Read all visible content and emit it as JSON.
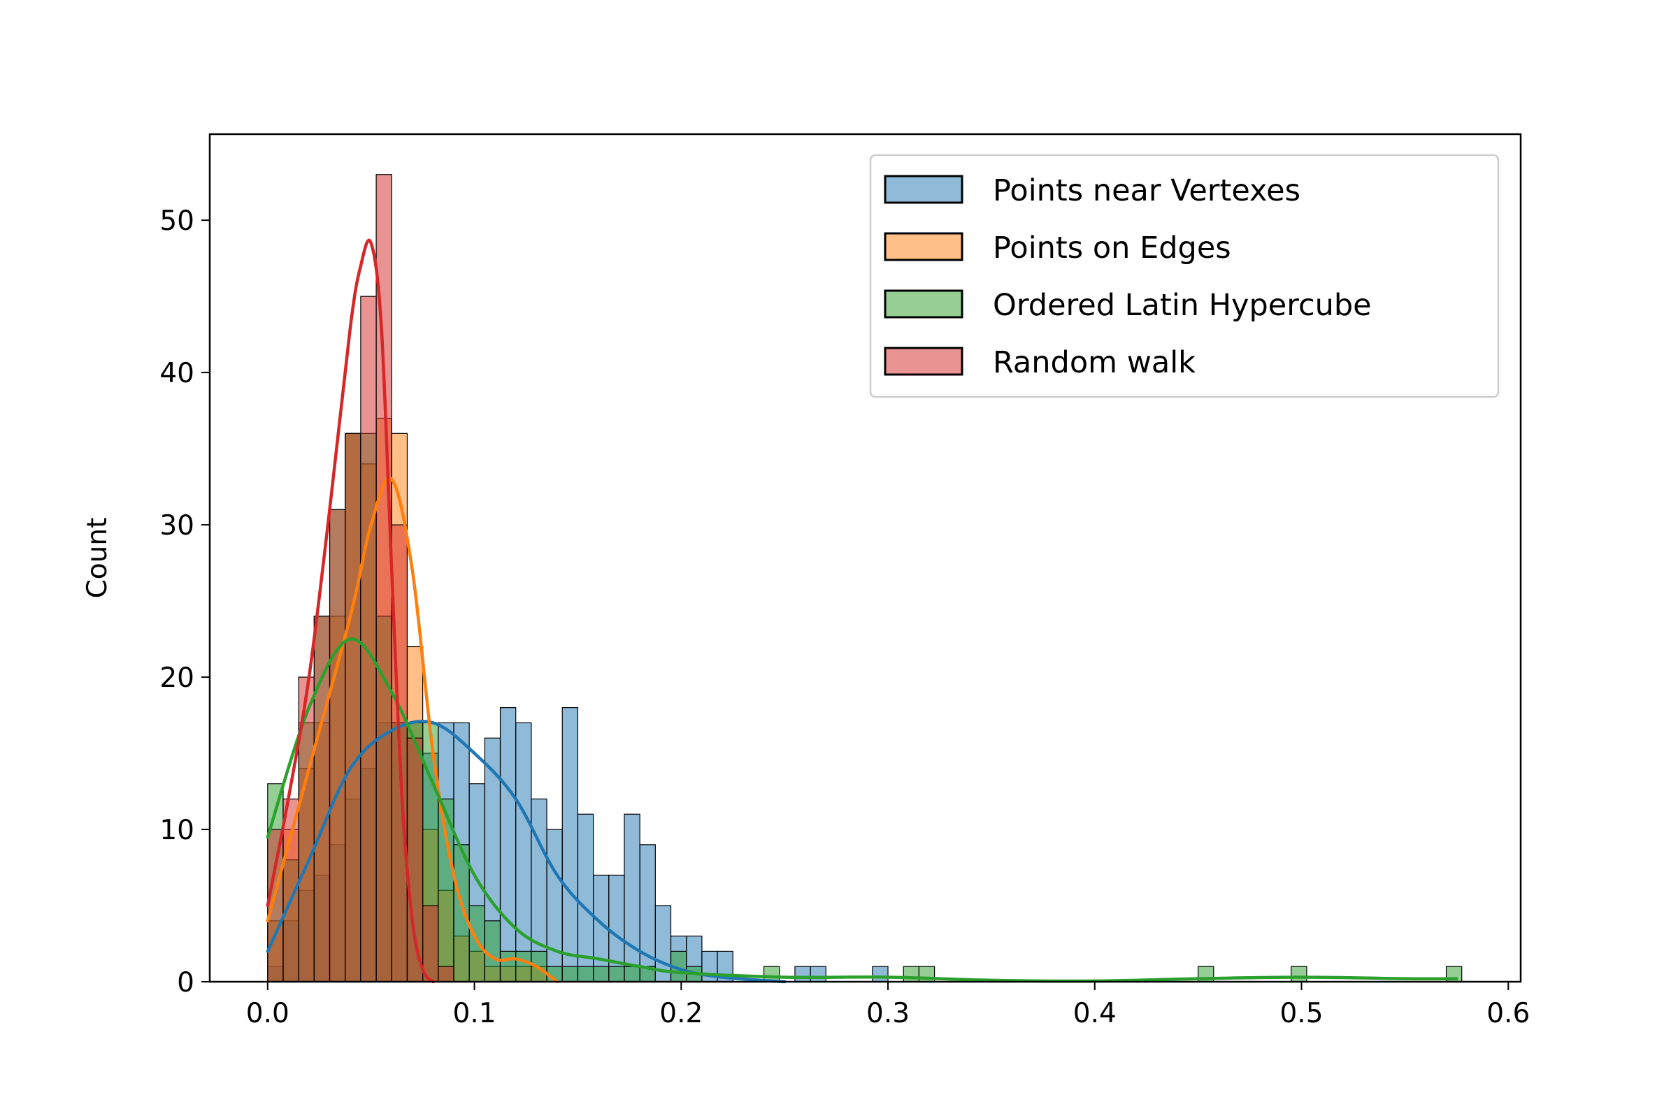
{
  "chart_data": {
    "type": "histogram",
    "xlabel": "",
    "ylabel": "Count",
    "xlim": [
      -0.028,
      0.606
    ],
    "ylim": [
      0,
      55.65
    ],
    "xticks": [
      0.0,
      0.1,
      0.2,
      0.3,
      0.4,
      0.5,
      0.6
    ],
    "xtick_labels": [
      "0.0",
      "0.1",
      "0.2",
      "0.3",
      "0.4",
      "0.5",
      "0.6"
    ],
    "yticks": [
      0,
      10,
      20,
      30,
      40,
      50
    ],
    "ytick_labels": [
      "0",
      "10",
      "20",
      "30",
      "40",
      "50"
    ],
    "grid": false,
    "legend_position": "top-right",
    "bin_start": 0.0,
    "bin_width": 0.0075,
    "series": [
      {
        "name": "Points near Vertexes",
        "color": "#1f77b4",
        "counts": [
          1,
          4,
          6,
          7,
          9,
          12,
          14,
          17,
          17,
          17,
          15,
          17,
          17,
          13,
          16,
          18,
          17,
          12,
          10,
          18,
          11,
          7,
          7,
          11,
          9,
          5,
          3,
          3,
          2,
          2,
          0,
          0,
          0,
          0,
          1,
          1,
          0,
          0,
          0,
          1,
          0
        ],
        "kde_x": [
          0.0,
          0.02,
          0.04,
          0.06,
          0.08,
          0.1,
          0.12,
          0.14,
          0.16,
          0.18,
          0.2,
          0.22,
          0.25
        ],
        "kde_y": [
          2,
          8,
          14,
          16.5,
          17,
          15,
          12,
          7,
          4,
          2,
          0.8,
          0.3,
          0
        ]
      },
      {
        "name": "Points on Edges",
        "color": "#ff7f0e",
        "counts": [
          4,
          10,
          14,
          17,
          24,
          36,
          34,
          37,
          36,
          22,
          10,
          6,
          3,
          2,
          1,
          1,
          1,
          1,
          0
        ],
        "kde_x": [
          0.0,
          0.02,
          0.04,
          0.05,
          0.06,
          0.07,
          0.08,
          0.09,
          0.1,
          0.11,
          0.12,
          0.13,
          0.14
        ],
        "kde_y": [
          4,
          14,
          24,
          30,
          33,
          27,
          15,
          7,
          3,
          1.5,
          1.5,
          1,
          0
        ]
      },
      {
        "name": "Ordered Latin Hypercube",
        "color": "#2ca02c",
        "sparse_bins": [
          [
            0.0,
            13
          ],
          [
            0.0075,
            8
          ],
          [
            0.015,
            17
          ],
          [
            0.0225,
            24
          ],
          [
            0.03,
            31
          ],
          [
            0.0375,
            36
          ],
          [
            0.045,
            36
          ],
          [
            0.0525,
            24
          ],
          [
            0.06,
            17
          ],
          [
            0.0675,
            17
          ],
          [
            0.075,
            17
          ],
          [
            0.0825,
            12
          ],
          [
            0.09,
            9
          ],
          [
            0.0975,
            5
          ],
          [
            0.105,
            4
          ],
          [
            0.1125,
            2
          ],
          [
            0.12,
            2
          ],
          [
            0.1275,
            2
          ],
          [
            0.135,
            1
          ],
          [
            0.1425,
            1
          ],
          [
            0.15,
            1
          ],
          [
            0.1575,
            1
          ],
          [
            0.165,
            1
          ],
          [
            0.1725,
            1
          ],
          [
            0.18,
            1
          ],
          [
            0.195,
            2
          ],
          [
            0.2025,
            1
          ],
          [
            0.24,
            1
          ],
          [
            0.3075,
            1
          ],
          [
            0.315,
            1
          ],
          [
            0.45,
            1
          ],
          [
            0.495,
            1
          ],
          [
            0.57,
            1
          ]
        ],
        "kde_x": [
          0.0,
          0.02,
          0.04,
          0.06,
          0.08,
          0.1,
          0.12,
          0.14,
          0.16,
          0.18,
          0.2,
          0.25,
          0.3,
          0.35,
          0.4,
          0.45,
          0.5,
          0.55,
          0.575
        ],
        "kde_y": [
          9.5,
          18,
          22.5,
          19,
          13,
          7,
          3.5,
          2,
          1.5,
          1,
          0.6,
          0.3,
          0.3,
          0.1,
          0.05,
          0.2,
          0.3,
          0.2,
          0.2
        ]
      },
      {
        "name": "Random walk",
        "color": "#d62728",
        "counts": [
          10,
          12,
          20,
          24,
          31,
          36,
          45,
          53,
          30,
          16,
          5,
          1
        ],
        "kde_x": [
          0.0,
          0.01,
          0.02,
          0.03,
          0.04,
          0.045,
          0.05,
          0.055,
          0.06,
          0.065,
          0.07,
          0.075,
          0.08
        ],
        "kde_y": [
          5,
          12,
          20,
          31,
          43,
          47,
          48.5,
          43,
          27,
          12,
          4,
          0.8,
          0
        ]
      }
    ]
  }
}
